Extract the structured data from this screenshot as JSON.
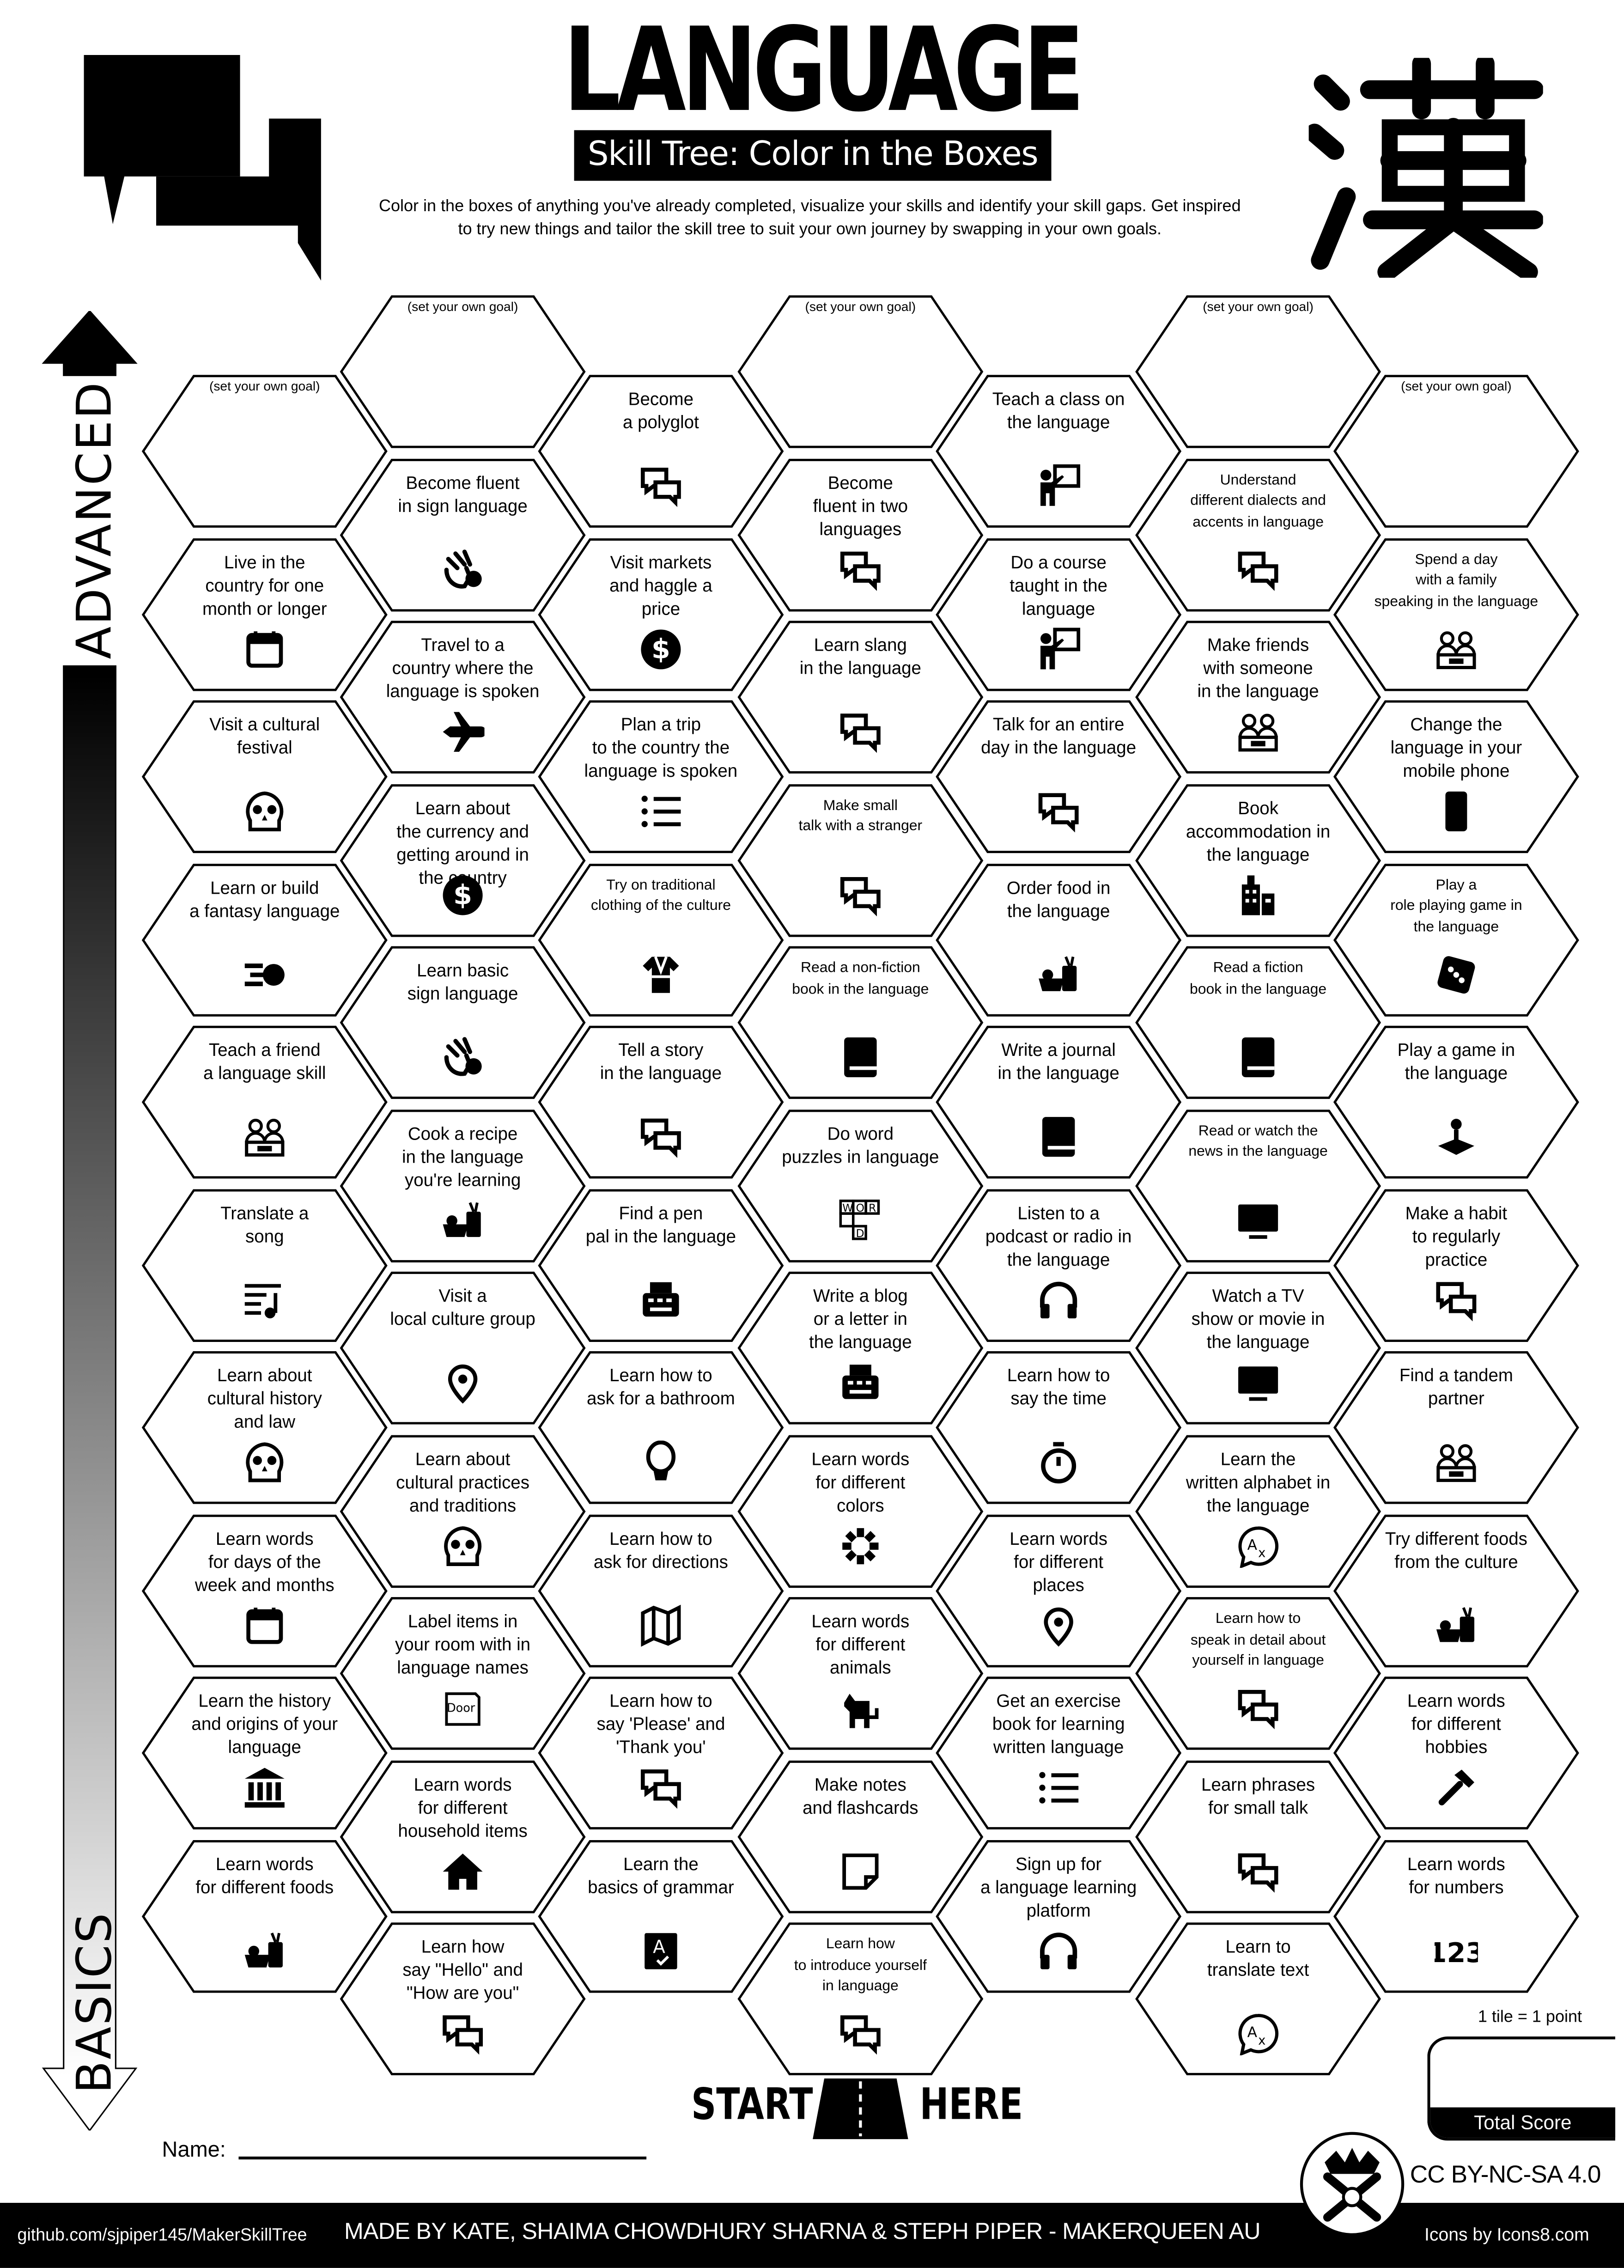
{
  "header": {
    "title": "LANGUAGE",
    "subtitle": "Skill Tree: Color in the Boxes",
    "description": "Color in the boxes of anything you've already completed, visualize your skills and identify your skill gaps.  Get inspired\nto try new things and tailor the skill tree to suit your own journey by swapping in your own goals.",
    "logo_icon": "chat-bubbles-icon",
    "kanji_logo": "漢"
  },
  "axis": {
    "top_label": "ADVANCED",
    "bottom_label": "BASICS"
  },
  "goal_placeholder": "(set your own goal)",
  "columns": [
    [
      {
        "goal": true
      },
      {
        "text": "Live in the\ncountry for one\nmonth or longer",
        "icon": "calendar"
      },
      {
        "text": "Visit a cultural\nfestival",
        "icon": "sugar-skull"
      },
      {
        "text": "Learn or build\na fantasy language",
        "icon": "starship"
      },
      {
        "text": "Teach a friend\na language skill",
        "icon": "people"
      },
      {
        "text": "Translate a\nsong",
        "icon": "music-lyrics"
      },
      {
        "text": "Learn about\ncultural history\nand law",
        "icon": "sugar-skull"
      },
      {
        "text": "Learn words\nfor days of the\nweek and months",
        "icon": "calendar"
      },
      {
        "text": "Learn the history\nand origins of your\nlanguage",
        "icon": "museum"
      },
      {
        "text": "Learn words\nfor different foods",
        "icon": "food"
      }
    ],
    [
      {
        "goal": true
      },
      {
        "text": "Become fluent\nin sign language",
        "icon": "sign-language"
      },
      {
        "text": "Travel to a\ncountry where the\nlanguage is spoken",
        "icon": "airplane"
      },
      {
        "text": "Learn about\nthe currency and\ngetting around in\nthe country",
        "icon": "dollar"
      },
      {
        "text": "Learn basic\nsign language",
        "icon": "sign-language"
      },
      {
        "text": "Cook a recipe\nin the language\nyou're learning",
        "icon": "food"
      },
      {
        "text": "Visit a\nlocal culture group",
        "icon": "map-pin"
      },
      {
        "text": "Learn about\ncultural practices\nand traditions",
        "icon": "sugar-skull"
      },
      {
        "text": "Label items in\nyour room with in\nlanguage names",
        "icon": "door-sign"
      },
      {
        "text": "Learn words\nfor different\nhousehold items",
        "icon": "home"
      },
      {
        "text": "Learn how\nsay \"Hello\" and\n\"How are you\"",
        "icon": "chat"
      }
    ],
    [
      {
        "text": "Become\na polyglot",
        "icon": "chat"
      },
      {
        "text": "Visit markets\nand haggle a\nprice",
        "icon": "dollar"
      },
      {
        "text": "Plan a trip\nto the country the\nlanguage is spoken",
        "icon": "list"
      },
      {
        "text": "Try on traditional\nclothing of the culture",
        "icon": "kimono"
      },
      {
        "text": "Tell a story\nin the language",
        "icon": "chat"
      },
      {
        "text": "Find a pen\npal in the language",
        "icon": "typewriter"
      },
      {
        "text": "Learn how to\nask for a bathroom",
        "icon": "toilet"
      },
      {
        "text": "Learn how to\nask for directions",
        "icon": "map"
      },
      {
        "text": "Learn how to\nsay 'Please' and\n'Thank you'",
        "icon": "chat"
      },
      {
        "text": "Learn the\nbasics of grammar",
        "icon": "grammar-book"
      }
    ],
    [
      {
        "goal": true
      },
      {
        "text": "Become\nfluent in two\nlanguages",
        "icon": "chat"
      },
      {
        "text": "Learn slang\nin the language",
        "icon": "chat"
      },
      {
        "text": "Make small\ntalk with a stranger",
        "icon": "chat"
      },
      {
        "text": "Read a non-fiction\nbook in the language",
        "icon": "book"
      },
      {
        "text": "Do word\npuzzles in language",
        "icon": "word-puzzle"
      },
      {
        "text": "Write a blog\nor a letter in\nthe language",
        "icon": "typewriter"
      },
      {
        "text": "Learn words\nfor different\ncolors",
        "icon": "color-wheel"
      },
      {
        "text": "Learn words\nfor different\nanimals",
        "icon": "dog"
      },
      {
        "text": "Make notes\nand flashcards",
        "icon": "note"
      },
      {
        "text": "Learn how\nto introduce yourself\nin language",
        "icon": "chat"
      }
    ],
    [
      {
        "text": "Teach a class on\nthe language",
        "icon": "teacher"
      },
      {
        "text": "Do a course\ntaught in the\nlanguage",
        "icon": "teacher"
      },
      {
        "text": "Talk for an entire\nday in the language",
        "icon": "chat"
      },
      {
        "text": "Order food in\nthe language",
        "icon": "food"
      },
      {
        "text": "Write a journal\nin the language",
        "icon": "book"
      },
      {
        "text": "Listen to a\npodcast or radio in\nthe language",
        "icon": "headphones"
      },
      {
        "text": "Learn how to\nsay the time",
        "icon": "stopwatch"
      },
      {
        "text": "Learn words\nfor different\nplaces",
        "icon": "map-pin"
      },
      {
        "text": "Get an exercise\nbook for learning\nwritten language",
        "icon": "list"
      },
      {
        "text": "Sign up for\na language learning\nplatform",
        "icon": "headphones"
      }
    ],
    [
      {
        "goal": true
      },
      {
        "text": "Understand\ndifferent dialects and\naccents in language",
        "icon": "chat"
      },
      {
        "text": "Make friends\nwith someone\nin the language",
        "icon": "people"
      },
      {
        "text": "Book\naccommodation in\nthe language",
        "icon": "building"
      },
      {
        "text": "Read a fiction\nbook in the language",
        "icon": "book"
      },
      {
        "text": "Read or watch the\nnews in the language",
        "icon": "tv"
      },
      {
        "text": "Watch a TV\nshow or movie in\nthe language",
        "icon": "tv"
      },
      {
        "text": "Learn the\nwritten alphabet in\nthe language",
        "icon": "translate"
      },
      {
        "text": "Learn how to\nspeak in detail about\nyourself in language",
        "icon": "chat"
      },
      {
        "text": "Learn phrases\nfor small talk",
        "icon": "chat"
      },
      {
        "text": "Learn to\ntranslate text",
        "icon": "translate"
      }
    ],
    [
      {
        "goal": true
      },
      {
        "text": "Spend a day\nwith a family\nspeaking in the language",
        "icon": "people"
      },
      {
        "text": "Change the\nlanguage in your\nmobile phone",
        "icon": "phone"
      },
      {
        "text": "Play a\nrole playing game in\nthe language",
        "icon": "dice"
      },
      {
        "text": "Play a game in\nthe language",
        "icon": "joystick"
      },
      {
        "text": "Make a habit\nto regularly\npractice",
        "icon": "chat"
      },
      {
        "text": "Find a tandem\npartner",
        "icon": "people"
      },
      {
        "text": "Try different foods\nfrom the culture",
        "icon": "food"
      },
      {
        "text": "Learn words\nfor different\nhobbies",
        "icon": "hammer"
      },
      {
        "text": "Learn words\nfor numbers",
        "icon": "numbers"
      }
    ]
  ],
  "start": {
    "left": "START",
    "right": "HERE"
  },
  "name_label": "Name:",
  "score": {
    "note": "1 tile = 1 point",
    "label": "Total Score"
  },
  "license": "CC BY-NC-SA 4.0",
  "footer": {
    "github": "github.com/sjpiper145/MakerSkillTree",
    "credits": "MADE BY KATE, SHAIMA CHOWDHURY SHARNA & STEPH PIPER  -  MAKERQUEEN AU",
    "icons_credit": "Icons by Icons8.com"
  },
  "colors": {
    "ink": "#000000",
    "paper": "#ffffff"
  }
}
